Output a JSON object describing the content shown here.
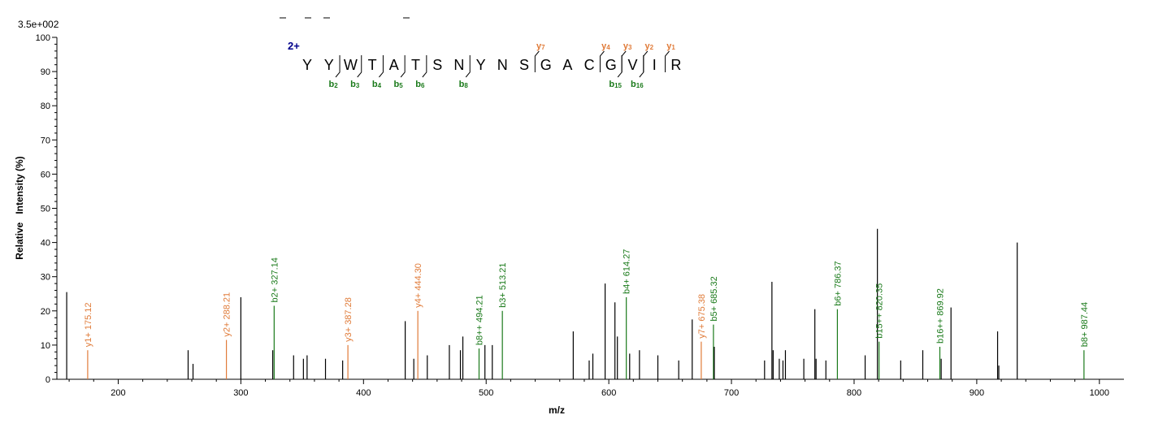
{
  "scale_label": "3.5e+002",
  "charge_label": "2+",
  "colors": {
    "b_ion": "#1a7a1a",
    "y_ion": "#e07b39",
    "peak": "#000000",
    "charge": "#00008b"
  },
  "sequence": [
    "Y",
    "Y",
    "W",
    "T",
    "A",
    "T",
    "S",
    "N",
    "Y",
    "N",
    "S",
    "G",
    "A",
    "C",
    "G",
    "V",
    "I",
    "R"
  ],
  "fragment_markers": {
    "b": [
      {
        "after": 2,
        "label": "b",
        "sub": "2"
      },
      {
        "after": 3,
        "label": "b",
        "sub": "3"
      },
      {
        "after": 4,
        "label": "b",
        "sub": "4"
      },
      {
        "after": 5,
        "label": "b",
        "sub": "5"
      },
      {
        "after": 6,
        "label": "b",
        "sub": "6"
      },
      {
        "after": 8,
        "label": "b",
        "sub": "8"
      },
      {
        "after": 15,
        "label": "b",
        "sub": "15"
      },
      {
        "after": 16,
        "label": "b",
        "sub": "16"
      }
    ],
    "y": [
      {
        "after": 11,
        "label": "y",
        "sub": "7"
      },
      {
        "after": 14,
        "label": "y",
        "sub": "4"
      },
      {
        "after": 15,
        "label": "y",
        "sub": "3"
      },
      {
        "after": 16,
        "label": "y",
        "sub": "2"
      },
      {
        "after": 17,
        "label": "y",
        "sub": "1"
      }
    ]
  },
  "chart_data": {
    "type": "bar",
    "xlabel": "m/z",
    "ylabel": "Relative   Intensity (%)",
    "xlim": [
      150,
      1020
    ],
    "ylim": [
      0,
      100
    ],
    "x_ticks": [
      200,
      300,
      400,
      500,
      600,
      700,
      800,
      900,
      1000
    ],
    "y_ticks": [
      0,
      10,
      20,
      30,
      40,
      50,
      60,
      70,
      80,
      90,
      100
    ],
    "peaks": [
      {
        "mz": 158.0,
        "intensity": 25.5
      },
      {
        "mz": 175.12,
        "intensity": 8.5,
        "ion": "y",
        "label": "y1+ 175.12"
      },
      {
        "mz": 257.0,
        "intensity": 8.5
      },
      {
        "mz": 261.0,
        "intensity": 4.5
      },
      {
        "mz": 288.21,
        "intensity": 11.5,
        "ion": "y",
        "label": "y2+ 288.21"
      },
      {
        "mz": 300.0,
        "intensity": 24.0
      },
      {
        "mz": 326.0,
        "intensity": 8.5
      },
      {
        "mz": 327.14,
        "intensity": 21.5,
        "ion": "b",
        "label": "b2+ 327.14"
      },
      {
        "mz": 343.0,
        "intensity": 7.0
      },
      {
        "mz": 351.0,
        "intensity": 6.0
      },
      {
        "mz": 354.0,
        "intensity": 7.0
      },
      {
        "mz": 369.0,
        "intensity": 6.0
      },
      {
        "mz": 383.0,
        "intensity": 5.5
      },
      {
        "mz": 387.28,
        "intensity": 10.0,
        "ion": "y",
        "label": "y3+ 387.28"
      },
      {
        "mz": 434.0,
        "intensity": 17.0
      },
      {
        "mz": 441.0,
        "intensity": 6.0
      },
      {
        "mz": 444.3,
        "intensity": 20.0,
        "ion": "y",
        "label": "y4+ 444.30"
      },
      {
        "mz": 452.0,
        "intensity": 7.0
      },
      {
        "mz": 470.0,
        "intensity": 10.0
      },
      {
        "mz": 479.0,
        "intensity": 8.5
      },
      {
        "mz": 481.0,
        "intensity": 12.5
      },
      {
        "mz": 494.21,
        "intensity": 9.0,
        "ion": "b",
        "label": "b8++ 494.21"
      },
      {
        "mz": 499.0,
        "intensity": 10.0
      },
      {
        "mz": 505.0,
        "intensity": 10.0
      },
      {
        "mz": 513.21,
        "intensity": 20.0,
        "ion": "b",
        "label": "b3+ 513.21"
      },
      {
        "mz": 571.0,
        "intensity": 14.0
      },
      {
        "mz": 584.0,
        "intensity": 5.5
      },
      {
        "mz": 587.0,
        "intensity": 7.5
      },
      {
        "mz": 597.0,
        "intensity": 28.0
      },
      {
        "mz": 605.0,
        "intensity": 22.5
      },
      {
        "mz": 607.0,
        "intensity": 12.5
      },
      {
        "mz": 614.27,
        "intensity": 24.0,
        "ion": "b",
        "label": "b4+ 614.27"
      },
      {
        "mz": 617.0,
        "intensity": 7.5
      },
      {
        "mz": 625.0,
        "intensity": 8.5
      },
      {
        "mz": 640.0,
        "intensity": 7.0
      },
      {
        "mz": 657.0,
        "intensity": 5.5
      },
      {
        "mz": 668.0,
        "intensity": 17.5
      },
      {
        "mz": 675.38,
        "intensity": 11.0,
        "ion": "y",
        "label": "y7+ 675.38"
      },
      {
        "mz": 685.32,
        "intensity": 16.0,
        "ion": "b",
        "label": "b5+ 685.32"
      },
      {
        "mz": 686.0,
        "intensity": 9.5
      },
      {
        "mz": 727.0,
        "intensity": 5.5
      },
      {
        "mz": 733.0,
        "intensity": 28.5
      },
      {
        "mz": 734.0,
        "intensity": 8.5
      },
      {
        "mz": 739.0,
        "intensity": 6.0
      },
      {
        "mz": 742.0,
        "intensity": 5.5
      },
      {
        "mz": 744.0,
        "intensity": 8.5
      },
      {
        "mz": 759.0,
        "intensity": 6.0
      },
      {
        "mz": 768.0,
        "intensity": 20.5
      },
      {
        "mz": 769.0,
        "intensity": 6.0
      },
      {
        "mz": 777.0,
        "intensity": 5.5
      },
      {
        "mz": 786.37,
        "intensity": 20.5,
        "ion": "b",
        "label": "b6+ 786.37"
      },
      {
        "mz": 809.0,
        "intensity": 7.0
      },
      {
        "mz": 819.0,
        "intensity": 44.0
      },
      {
        "mz": 820.35,
        "intensity": 11.0,
        "ion": "b",
        "label": "b15++ 820.35"
      },
      {
        "mz": 838.0,
        "intensity": 5.5
      },
      {
        "mz": 856.0,
        "intensity": 8.5
      },
      {
        "mz": 869.92,
        "intensity": 9.5,
        "ion": "b",
        "label": "b16++ 869.92"
      },
      {
        "mz": 871.0,
        "intensity": 6.0
      },
      {
        "mz": 879.0,
        "intensity": 21.0
      },
      {
        "mz": 917.0,
        "intensity": 14.0
      },
      {
        "mz": 918.0,
        "intensity": 4.0
      },
      {
        "mz": 933.0,
        "intensity": 40.0
      },
      {
        "mz": 987.44,
        "intensity": 8.5,
        "ion": "b",
        "label": "b8+ 987.44"
      }
    ]
  }
}
